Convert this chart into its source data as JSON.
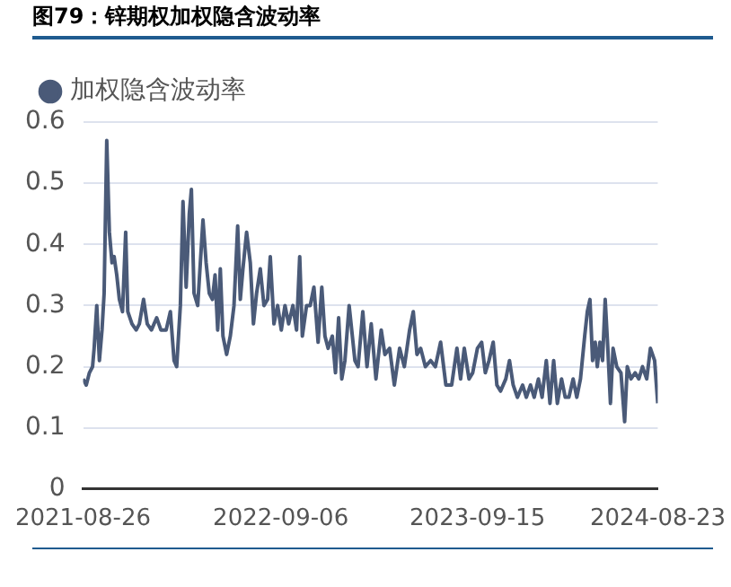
{
  "chart_data": {
    "type": "line",
    "title": "图79：锌期权加权隐含波动率",
    "x": [
      "2021-08-26",
      "2021-09-01",
      "2021-09-07",
      "2021-09-13",
      "2021-09-16",
      "2021-09-21",
      "2021-09-26",
      "2021-10-01",
      "2021-10-05",
      "2021-10-10",
      "2021-10-15",
      "2021-10-20",
      "2021-10-24",
      "2021-10-29",
      "2021-11-03",
      "2021-11-09",
      "2021-11-15",
      "2021-11-19",
      "2021-11-27",
      "2021-12-05",
      "2021-12-11",
      "2021-12-19",
      "2021-12-26",
      "2022-01-03",
      "2022-01-13",
      "2022-01-21",
      "2022-01-31",
      "2022-02-08",
      "2022-02-15",
      "2022-02-20",
      "2022-02-27",
      "2022-03-04",
      "2022-03-10",
      "2022-03-16",
      "2022-03-20",
      "2022-03-25",
      "2022-04-01",
      "2022-04-11",
      "2022-04-17",
      "2022-04-23",
      "2022-04-29",
      "2022-05-04",
      "2022-05-09",
      "2022-05-14",
      "2022-05-19",
      "2022-05-26",
      "2022-06-02",
      "2022-06-09",
      "2022-06-16",
      "2022-06-21",
      "2022-06-26",
      "2022-07-03",
      "2022-07-10",
      "2022-07-16",
      "2022-07-22",
      "2022-07-29",
      "2022-08-05",
      "2022-08-12",
      "2022-08-17",
      "2022-08-24",
      "2022-08-31",
      "2022-09-07",
      "2022-09-14",
      "2022-09-21",
      "2022-09-29",
      "2022-10-06",
      "2022-10-12",
      "2022-10-17",
      "2022-10-25",
      "2022-11-01",
      "2022-11-08",
      "2022-11-16",
      "2022-11-23",
      "2022-11-29",
      "2022-12-05",
      "2022-12-13",
      "2022-12-19",
      "2022-12-25",
      "2022-12-31",
      "2023-01-06",
      "2023-01-14",
      "2023-01-25",
      "2023-01-31",
      "2023-02-09",
      "2023-02-17",
      "2023-02-25",
      "2023-03-06",
      "2023-03-16",
      "2023-03-23",
      "2023-04-01",
      "2023-04-10",
      "2023-04-20",
      "2023-04-29",
      "2023-05-09",
      "2023-05-16",
      "2023-05-23",
      "2023-05-30",
      "2023-06-08",
      "2023-06-18",
      "2023-06-27",
      "2023-07-07",
      "2023-07-17",
      "2023-07-28",
      "2023-08-07",
      "2023-08-14",
      "2023-08-21",
      "2023-08-30",
      "2023-09-06",
      "2023-09-15",
      "2023-09-23",
      "2023-09-30",
      "2023-10-07",
      "2023-10-15",
      "2023-10-22",
      "2023-10-29",
      "2023-11-08",
      "2023-11-15",
      "2023-11-22",
      "2023-11-30",
      "2023-12-10",
      "2023-12-17",
      "2023-12-25",
      "2024-01-01",
      "2024-01-09",
      "2024-01-16",
      "2024-01-24",
      "2024-01-31",
      "2024-02-07",
      "2024-02-14",
      "2024-02-22",
      "2024-02-29",
      "2024-03-07",
      "2024-03-15",
      "2024-03-22",
      "2024-03-29",
      "2024-04-06",
      "2024-04-11",
      "2024-04-16",
      "2024-04-21",
      "2024-04-26",
      "2024-04-30",
      "2024-05-05",
      "2024-05-10",
      "2024-05-15",
      "2024-05-20",
      "2024-05-25",
      "2024-05-30",
      "2024-06-06",
      "2024-06-14",
      "2024-06-21",
      "2024-06-26",
      "2024-07-03",
      "2024-07-11",
      "2024-07-18",
      "2024-07-25",
      "2024-08-02",
      "2024-08-09",
      "2024-08-17",
      "2024-08-23"
    ],
    "series": [
      {
        "name": "加权隐含波动率",
        "color": "#4a5a78",
        "values": [
          0.18,
          0.17,
          0.19,
          0.2,
          0.23,
          0.3,
          0.21,
          0.26,
          0.32,
          0.57,
          0.42,
          0.37,
          0.38,
          0.35,
          0.31,
          0.29,
          0.42,
          0.29,
          0.27,
          0.26,
          0.27,
          0.31,
          0.27,
          0.26,
          0.28,
          0.26,
          0.26,
          0.29,
          0.21,
          0.2,
          0.3,
          0.47,
          0.33,
          0.45,
          0.49,
          0.32,
          0.3,
          0.44,
          0.37,
          0.32,
          0.31,
          0.35,
          0.26,
          0.36,
          0.25,
          0.22,
          0.25,
          0.3,
          0.43,
          0.31,
          0.36,
          0.42,
          0.37,
          0.27,
          0.32,
          0.36,
          0.3,
          0.31,
          0.38,
          0.27,
          0.3,
          0.26,
          0.3,
          0.27,
          0.3,
          0.26,
          0.38,
          0.25,
          0.3,
          0.3,
          0.33,
          0.24,
          0.33,
          0.25,
          0.23,
          0.25,
          0.19,
          0.28,
          0.18,
          0.21,
          0.3,
          0.21,
          0.2,
          0.29,
          0.2,
          0.27,
          0.18,
          0.26,
          0.22,
          0.23,
          0.17,
          0.23,
          0.2,
          0.26,
          0.29,
          0.22,
          0.23,
          0.2,
          0.21,
          0.2,
          0.24,
          0.17,
          0.17,
          0.23,
          0.18,
          0.23,
          0.18,
          0.19,
          0.23,
          0.24,
          0.19,
          0.21,
          0.24,
          0.17,
          0.16,
          0.18,
          0.21,
          0.17,
          0.15,
          0.17,
          0.15,
          0.17,
          0.15,
          0.18,
          0.15,
          0.21,
          0.14,
          0.21,
          0.14,
          0.18,
          0.15,
          0.15,
          0.18,
          0.15,
          0.18,
          0.25,
          0.29,
          0.31,
          0.21,
          0.24,
          0.2,
          0.24,
          0.21,
          0.31,
          0.23,
          0.14,
          0.23,
          0.2,
          0.19,
          0.11,
          0.2,
          0.18,
          0.19,
          0.18,
          0.2,
          0.18,
          0.23,
          0.21,
          0.14
        ]
      }
    ],
    "xlim": [
      "2021-08-26",
      "2024-08-23"
    ],
    "xticks": [
      "2021-08-26",
      "2022-09-06",
      "2023-09-15",
      "2024-08-23"
    ],
    "ylim": [
      0,
      0.6
    ],
    "yticks": [
      0,
      0.1,
      0.2,
      0.3,
      0.4,
      0.5,
      0.6
    ],
    "grid": "y",
    "legend": "top left"
  }
}
